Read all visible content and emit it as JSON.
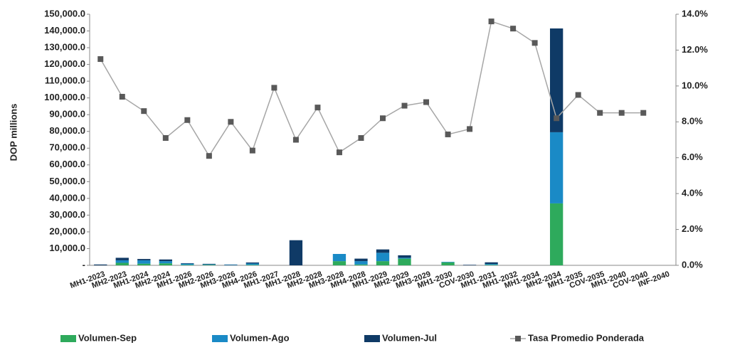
{
  "chart_data": {
    "type": "bar-line",
    "y_label": "DOP millions",
    "categories": [
      "MH1-2023",
      "MH2-2023",
      "MH1-2024",
      "MH2-2024",
      "MH1-2026",
      "MH2-2026",
      "MH3-2026",
      "MH4-2026",
      "MH1-2027",
      "MH1-2028",
      "MH2-2028",
      "MH3-2028",
      "MH4-2028",
      "MH1-2029",
      "MH2-2029",
      "MH3-2029",
      "MH1-2030",
      "COV-2030",
      "MH1-2031",
      "MH1-2032",
      "MH1-2034",
      "MH2-2034",
      "MH1-2035",
      "COV-2035",
      "MH1-2040",
      "COV-2040",
      "INF-2040"
    ],
    "series": [
      {
        "name": "Volumen-Sep",
        "color": "#2eaa5c",
        "type": "bar",
        "values": [
          0,
          1500,
          1000,
          1200,
          300,
          300,
          0,
          300,
          0,
          0,
          0,
          2500,
          500,
          2500,
          4000,
          0,
          1800,
          0,
          300,
          0,
          0,
          37000,
          0,
          0,
          0,
          0,
          0
        ]
      },
      {
        "name": "Volumen-Ago",
        "color": "#1a8ac6",
        "type": "bar",
        "values": [
          0,
          1500,
          2000,
          1300,
          700,
          300,
          300,
          800,
          0,
          0,
          0,
          4300,
          2000,
          5000,
          500,
          0,
          300,
          0,
          500,
          0,
          0,
          42500,
          0,
          0,
          0,
          0,
          0
        ]
      },
      {
        "name": "Volumen-Jul",
        "color": "#0f3a66",
        "type": "bar",
        "values": [
          500,
          1500,
          800,
          1000,
          300,
          300,
          200,
          600,
          0,
          15000,
          0,
          0,
          1500,
          2000,
          1500,
          0,
          0,
          300,
          1000,
          0,
          0,
          62000,
          0,
          0,
          0,
          0,
          0
        ]
      },
      {
        "name": "Tasa Promedio Ponderada",
        "color": "#a6a6a6",
        "marker_color": "#595959",
        "type": "line",
        "axis": "y2",
        "values": [
          11.5,
          9.4,
          8.6,
          7.1,
          8.1,
          6.1,
          8.0,
          6.4,
          9.9,
          7.0,
          8.8,
          6.3,
          7.1,
          8.2,
          8.9,
          9.1,
          7.3,
          7.6,
          13.6,
          13.2,
          12.4,
          8.2,
          9.5,
          8.5,
          8.5,
          8.5,
          null
        ]
      }
    ],
    "ylim": [
      0,
      150000
    ],
    "yticks": [
      {
        "value": 0,
        "label": "-"
      },
      {
        "value": 10000,
        "label": "10,000.0"
      },
      {
        "value": 20000,
        "label": "20,000.0"
      },
      {
        "value": 30000,
        "label": "30,000.0"
      },
      {
        "value": 40000,
        "label": "40,000.0"
      },
      {
        "value": 50000,
        "label": "50,000.0"
      },
      {
        "value": 60000,
        "label": "60,000.0"
      },
      {
        "value": 70000,
        "label": "70,000.0"
      },
      {
        "value": 80000,
        "label": "80,000.0"
      },
      {
        "value": 90000,
        "label": "90,000.0"
      },
      {
        "value": 100000,
        "label": "100,000.0"
      },
      {
        "value": 110000,
        "label": "110,000.0"
      },
      {
        "value": 120000,
        "label": "120,000.0"
      },
      {
        "value": 130000,
        "label": "130,000.0"
      },
      {
        "value": 140000,
        "label": "140,000.0"
      },
      {
        "value": 150000,
        "label": "150,000.0"
      }
    ],
    "y2lim": [
      0,
      14
    ],
    "y2ticks": [
      {
        "value": 0,
        "label": "0.0%"
      },
      {
        "value": 2,
        "label": "2.0%"
      },
      {
        "value": 4,
        "label": "4.0%"
      },
      {
        "value": 6,
        "label": "6.0%"
      },
      {
        "value": 8,
        "label": "8.0%"
      },
      {
        "value": 10,
        "label": "10.0%"
      },
      {
        "value": 12,
        "label": "12.0%"
      },
      {
        "value": 14,
        "label": "14.0%"
      }
    ],
    "legend": "bottom"
  }
}
